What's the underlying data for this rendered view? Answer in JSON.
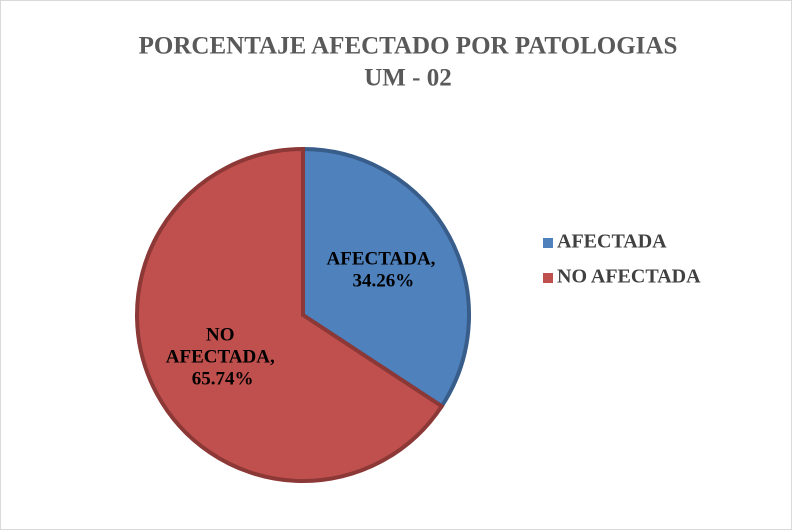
{
  "chart_data": {
    "type": "pie",
    "title": "PORCENTAJE AFECTADO POR PATOLOGIAS",
    "subtitle": "UM - 02",
    "categories": [
      "AFECTADA",
      "NO AFECTADA"
    ],
    "values": [
      34.26,
      65.74
    ],
    "value_labels": [
      "AFECTADA, 34.26%",
      "NO AFECTADA, 65.74%"
    ],
    "colors": [
      "#4f81bd",
      "#c0504d"
    ],
    "legend": "right"
  }
}
